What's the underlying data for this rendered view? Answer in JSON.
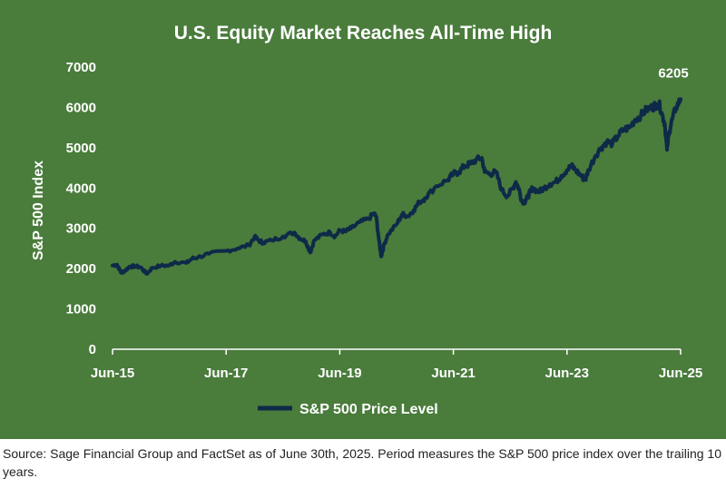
{
  "chart_data": {
    "type": "line",
    "title": "U.S. Equity Market Reaches All-Time High",
    "ylabel": "S&P 500 Index",
    "xlabel": "",
    "ylim": [
      0,
      7000
    ],
    "yticks": [
      0,
      1000,
      2000,
      3000,
      4000,
      5000,
      6000,
      7000
    ],
    "xticks": [
      "Jun-15",
      "Jun-17",
      "Jun-19",
      "Jun-21",
      "Jun-23",
      "Jun-25"
    ],
    "xlim": [
      2015.5,
      2025.5
    ],
    "grid": false,
    "legend_position": "bottom",
    "annotation": {
      "label": "6205",
      "x": 2025.5,
      "y": 6205
    },
    "series": [
      {
        "name": "S&P 500 Price Level",
        "x": [
          2015.5,
          2015.58,
          2015.65,
          2015.72,
          2015.8,
          2015.9,
          2016.0,
          2016.1,
          2016.2,
          2016.35,
          2016.5,
          2016.6,
          2016.8,
          2016.9,
          2017.0,
          2017.2,
          2017.5,
          2017.7,
          2017.9,
          2018.0,
          2018.08,
          2018.15,
          2018.3,
          2018.5,
          2018.7,
          2018.8,
          2018.9,
          2018.98,
          2019.05,
          2019.2,
          2019.33,
          2019.42,
          2019.5,
          2019.6,
          2019.7,
          2019.85,
          2020.0,
          2020.1,
          2020.14,
          2020.19,
          2020.23,
          2020.28,
          2020.35,
          2020.5,
          2020.6,
          2020.7,
          2020.8,
          2020.9,
          2021.0,
          2021.2,
          2021.4,
          2021.5,
          2021.6,
          2021.7,
          2021.8,
          2021.9,
          2022.0,
          2022.05,
          2022.15,
          2022.25,
          2022.35,
          2022.45,
          2022.55,
          2022.6,
          2022.65,
          2022.7,
          2022.75,
          2022.8,
          2022.85,
          2022.9,
          2023.0,
          2023.1,
          2023.2,
          2023.3,
          2023.4,
          2023.5,
          2023.58,
          2023.65,
          2023.75,
          2023.82,
          2023.88,
          2024.0,
          2024.1,
          2024.2,
          2024.3,
          2024.4,
          2024.5,
          2024.6,
          2024.7,
          2024.8,
          2024.9,
          2025.0,
          2025.05,
          2025.12,
          2025.18,
          2025.22,
          2025.26,
          2025.3,
          2025.35,
          2025.42,
          2025.5
        ],
        "values": [
          2080,
          2100,
          1900,
          1950,
          2050,
          2060,
          2030,
          1870,
          2020,
          2070,
          2080,
          2170,
          2140,
          2250,
          2280,
          2370,
          2440,
          2500,
          2580,
          2790,
          2690,
          2650,
          2700,
          2800,
          2900,
          2750,
          2680,
          2400,
          2700,
          2850,
          2900,
          2800,
          2950,
          2920,
          3000,
          3150,
          3230,
          3370,
          3300,
          2700,
          2300,
          2600,
          2850,
          3100,
          3350,
          3300,
          3450,
          3650,
          3750,
          4050,
          4200,
          4350,
          4400,
          4550,
          4600,
          4700,
          4750,
          4400,
          4350,
          4400,
          3950,
          3800,
          4000,
          4150,
          4000,
          3700,
          3650,
          3750,
          3900,
          4000,
          3900,
          4000,
          4100,
          4150,
          4300,
          4450,
          4550,
          4450,
          4300,
          4200,
          4450,
          4800,
          5000,
          5150,
          5100,
          5300,
          5450,
          5500,
          5700,
          5800,
          5950,
          6000,
          6050,
          6100,
          5800,
          5600,
          4950,
          5400,
          5700,
          6000,
          6205
        ]
      }
    ]
  },
  "source_note": "Source: Sage Financial Group and FactSet as of June 30th, 2025. Period measures the S&P 500 price index over the trailing 10 years.",
  "colors": {
    "background": "#4a7c3c",
    "line": "#0e2a48",
    "text": "#ffffff"
  }
}
